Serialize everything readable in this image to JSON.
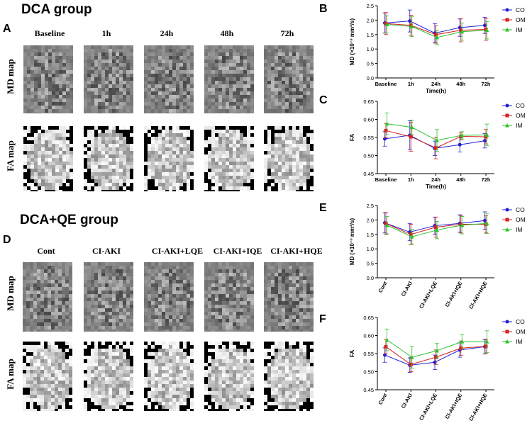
{
  "groups": [
    {
      "letter": "A",
      "title": "DCA group",
      "columns": [
        "Baseline",
        "1h",
        "24h",
        "48h",
        "72h"
      ],
      "rows": [
        "MD map",
        "FA map"
      ]
    },
    {
      "letter": "D",
      "title": "DCA+QE group",
      "columns": [
        "Cont",
        "CI-AKI",
        "CI-AKI+LQE",
        "CI-AKI+IQE",
        "CI-AKI+HQE"
      ],
      "rows": [
        "MD map",
        "FA map"
      ]
    }
  ],
  "series_colors": {
    "CO": "#1f1fd6",
    "OM": "#d62020",
    "IM": "#2ec02e"
  },
  "chart_data": [
    {
      "panel": "B",
      "type": "line",
      "categories": [
        "Baseline",
        "1h",
        "24h",
        "48h",
        "72h"
      ],
      "xlabel": "Time(h)",
      "ylabel": "MD (×10⁻³ mm²/s)",
      "ylim": [
        0,
        2.5
      ],
      "yticks": [
        "0.0",
        "0.5",
        "1.0",
        "1.5",
        "2.0",
        "2.5"
      ],
      "series": [
        {
          "name": "CO",
          "values": [
            1.9,
            1.97,
            1.55,
            1.74,
            1.82
          ],
          "err": [
            0.35,
            0.38,
            0.33,
            0.3,
            0.28
          ]
        },
        {
          "name": "OM",
          "values": [
            1.88,
            1.82,
            1.5,
            1.65,
            1.68
          ],
          "err": [
            0.38,
            0.35,
            0.3,
            0.4,
            0.38
          ]
        },
        {
          "name": "IM",
          "values": [
            1.85,
            1.78,
            1.4,
            1.6,
            1.65
          ],
          "err": [
            0.3,
            0.35,
            0.25,
            0.3,
            0.3
          ]
        }
      ]
    },
    {
      "panel": "C",
      "type": "line",
      "categories": [
        "Baseline",
        "1h",
        "24h",
        "48h",
        "72h"
      ],
      "xlabel": "Time(h)",
      "ylabel": "FA",
      "ylim": [
        0.45,
        0.65
      ],
      "yticks": [
        "0.45",
        "0.50",
        "0.55",
        "0.60",
        "0.65"
      ],
      "series": [
        {
          "name": "CO",
          "values": [
            0.546,
            0.556,
            0.52,
            0.53,
            0.541
          ],
          "err": [
            0.02,
            0.04,
            0.02,
            0.02,
            0.02
          ]
        },
        {
          "name": "OM",
          "values": [
            0.569,
            0.552,
            0.521,
            0.553,
            0.552
          ],
          "err": [
            0.02,
            0.04,
            0.03,
            0.01,
            0.02
          ]
        },
        {
          "name": "IM",
          "values": [
            0.588,
            0.578,
            0.542,
            0.556,
            0.557
          ],
          "err": [
            0.03,
            0.02,
            0.03,
            0.01,
            0.03
          ]
        }
      ]
    },
    {
      "panel": "E",
      "type": "line",
      "categories": [
        "Cont",
        "CI-AKI",
        "CI-AKI+LQE",
        "CI-AKI+IQE",
        "CI-AKI+HQE"
      ],
      "xlabel": "",
      "ylabel": "MD (×10⁻³ mm²/s)",
      "ylim": [
        0,
        2.5
      ],
      "yticks": [
        "0.0",
        "0.5",
        "1.0",
        "1.5",
        "2.0",
        "2.5"
      ],
      "series": [
        {
          "name": "CO",
          "values": [
            1.9,
            1.58,
            1.8,
            1.88,
            1.98
          ],
          "err": [
            0.35,
            0.3,
            0.3,
            0.3,
            0.3
          ]
        },
        {
          "name": "OM",
          "values": [
            1.88,
            1.5,
            1.75,
            1.85,
            1.85
          ],
          "err": [
            0.38,
            0.35,
            0.35,
            0.3,
            0.3
          ]
        },
        {
          "name": "IM",
          "values": [
            1.82,
            1.42,
            1.65,
            1.82,
            1.88
          ],
          "err": [
            0.3,
            0.25,
            0.3,
            0.3,
            0.35
          ]
        }
      ]
    },
    {
      "panel": "F",
      "type": "line",
      "categories": [
        "Cont",
        "CI-AKI",
        "CI-AKI+LQE",
        "CI-AKI+IQE",
        "CI-AKI+HQE"
      ],
      "xlabel": "",
      "ylabel": "FA",
      "ylim": [
        0.45,
        0.65
      ],
      "yticks": [
        "0.45",
        "0.50",
        "0.55",
        "0.60",
        "0.65"
      ],
      "series": [
        {
          "name": "CO",
          "values": [
            0.546,
            0.518,
            0.526,
            0.56,
            0.569
          ],
          "err": [
            0.02,
            0.02,
            0.02,
            0.02,
            0.02
          ]
        },
        {
          "name": "OM",
          "values": [
            0.569,
            0.52,
            0.54,
            0.565,
            0.57
          ],
          "err": [
            0.02,
            0.02,
            0.02,
            0.02,
            0.02
          ]
        },
        {
          "name": "IM",
          "values": [
            0.588,
            0.54,
            0.558,
            0.583,
            0.583
          ],
          "err": [
            0.03,
            0.03,
            0.02,
            0.02,
            0.03
          ]
        }
      ]
    }
  ]
}
